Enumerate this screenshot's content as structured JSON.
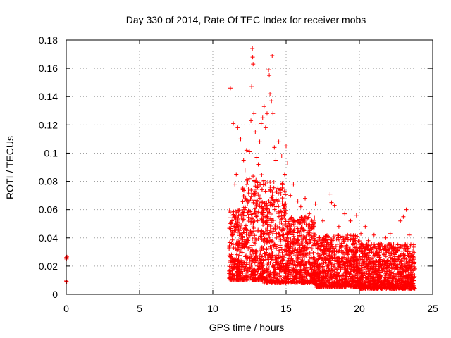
{
  "chart_data": {
    "type": "scatter",
    "title": "Day 330 of 2014, Rate Of TEC Index for receiver mobs",
    "xlabel": "GPS time / hours",
    "ylabel": "ROTI / TECUs",
    "xlim": [
      0,
      25
    ],
    "ylim": [
      0,
      0.18
    ],
    "x_ticks": [
      "0",
      "5",
      "10",
      "15",
      "20",
      "25"
    ],
    "y_ticks": [
      "0",
      "0.02",
      "0.04",
      "0.06",
      "0.08",
      "0.1",
      "0.12",
      "0.14",
      "0.16",
      "0.18"
    ],
    "grid": true,
    "marker": "plus",
    "color": "#ff0000",
    "series": [
      {
        "points": [
          [
            0.0,
            0.026
          ],
          [
            0.02,
            0.025
          ],
          [
            0.0,
            0.0095
          ],
          [
            0.03,
            0.009
          ],
          [
            0.05,
            0.0265
          ],
          [
            11.2,
            0.146
          ],
          [
            11.4,
            0.121
          ],
          [
            11.5,
            0.078
          ],
          [
            11.6,
            0.085
          ],
          [
            11.7,
            0.118
          ],
          [
            11.9,
            0.11
          ],
          [
            12.1,
            0.095
          ],
          [
            12.2,
            0.088
          ],
          [
            12.3,
            0.102
          ],
          [
            12.5,
            0.101
          ],
          [
            12.6,
            0.123
          ],
          [
            12.65,
            0.147
          ],
          [
            12.7,
            0.174
          ],
          [
            12.72,
            0.168
          ],
          [
            12.75,
            0.163
          ],
          [
            12.8,
            0.128
          ],
          [
            12.9,
            0.115
          ],
          [
            13.0,
            0.097
          ],
          [
            13.1,
            0.092
          ],
          [
            13.2,
            0.108
          ],
          [
            13.3,
            0.121
          ],
          [
            13.4,
            0.125
          ],
          [
            13.5,
            0.133
          ],
          [
            13.6,
            0.118
          ],
          [
            13.7,
            0.128
          ],
          [
            13.8,
            0.159
          ],
          [
            13.85,
            0.155
          ],
          [
            13.9,
            0.142
          ],
          [
            14.0,
            0.137
          ],
          [
            14.05,
            0.169
          ],
          [
            14.1,
            0.128
          ],
          [
            14.2,
            0.104
          ],
          [
            14.3,
            0.095
          ],
          [
            14.5,
            0.108
          ],
          [
            14.7,
            0.098
          ],
          [
            14.9,
            0.085
          ],
          [
            15.0,
            0.105
          ],
          [
            15.1,
            0.093
          ],
          [
            15.3,
            0.07
          ],
          [
            15.5,
            0.078
          ],
          [
            15.8,
            0.066
          ],
          [
            16.0,
            0.062
          ],
          [
            16.3,
            0.068
          ],
          [
            16.6,
            0.057
          ],
          [
            17.0,
            0.064
          ],
          [
            17.5,
            0.052
          ],
          [
            18.0,
            0.071
          ],
          [
            18.1,
            0.065
          ],
          [
            18.3,
            0.063
          ],
          [
            18.6,
            0.048
          ],
          [
            19.0,
            0.057
          ],
          [
            19.4,
            0.052
          ],
          [
            19.8,
            0.056
          ],
          [
            20.1,
            0.043
          ],
          [
            20.4,
            0.048
          ],
          [
            20.6,
            0.038
          ],
          [
            21.0,
            0.042
          ],
          [
            21.4,
            0.036
          ],
          [
            21.8,
            0.04
          ],
          [
            22.1,
            0.043
          ],
          [
            22.4,
            0.032
          ],
          [
            22.8,
            0.052
          ],
          [
            23.0,
            0.055
          ],
          [
            23.2,
            0.06
          ],
          [
            23.4,
            0.042
          ],
          [
            23.6,
            0.028
          ],
          [
            23.8,
            0.018
          ]
        ]
      }
    ],
    "bulk_bands": [
      {
        "x0": 11.1,
        "x1": 12.0,
        "y0": 0.01,
        "y1": 0.06
      },
      {
        "x0": 12.0,
        "x1": 13.5,
        "y0": 0.01,
        "y1": 0.085
      },
      {
        "x0": 13.5,
        "x1": 15.0,
        "y0": 0.008,
        "y1": 0.08
      },
      {
        "x0": 15.0,
        "x1": 17.0,
        "y0": 0.008,
        "y1": 0.055
      },
      {
        "x0": 17.0,
        "x1": 20.0,
        "y0": 0.005,
        "y1": 0.042
      },
      {
        "x0": 20.0,
        "x1": 23.8,
        "y0": 0.004,
        "y1": 0.036
      }
    ]
  }
}
